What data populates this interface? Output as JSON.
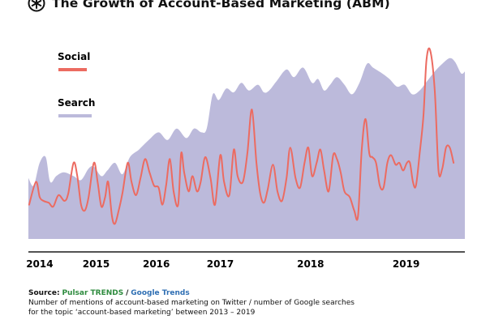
{
  "title": "The Growth of Account-Based Marketing (ABM)",
  "colors": {
    "search": "#bcbadb",
    "social": "#ec6b61",
    "axis": "#1a1a1a"
  },
  "footer": {
    "source_label": "Source:",
    "source_1": "Pulsar TRENDS",
    "separator": "/",
    "source_2": "Google Trends",
    "line_1": "Number of mentions of account-based marketing on Twitter / number of Google searches",
    "line_2": "for the topic ‘account-based marketing’ between 2013 – 2019"
  },
  "chart_data": {
    "type": "area",
    "title": "The Growth of Account-Based Marketing (ABM)",
    "xlabel": "",
    "ylabel": "",
    "xlim": [
      2013.85,
      2019.65
    ],
    "ylim": [
      0,
      100
    ],
    "grid": false,
    "legend_position": "top-left",
    "x_ticks": [
      {
        "value": 2014.0,
        "label": "2014"
      },
      {
        "value": 2014.75,
        "label": "2015"
      },
      {
        "value": 2015.55,
        "label": "2016"
      },
      {
        "value": 2016.4,
        "label": "2017"
      },
      {
        "value": 2017.6,
        "label": "2018"
      },
      {
        "value": 2018.87,
        "label": "2019"
      }
    ],
    "series": [
      {
        "name": "Search",
        "type": "area",
        "points": [
          [
            2013.85,
            32
          ],
          [
            2013.92,
            28
          ],
          [
            2014.0,
            40
          ],
          [
            2014.08,
            43
          ],
          [
            2014.14,
            30
          ],
          [
            2014.22,
            33
          ],
          [
            2014.32,
            35
          ],
          [
            2014.45,
            33
          ],
          [
            2014.55,
            31
          ],
          [
            2014.65,
            37
          ],
          [
            2014.72,
            38
          ],
          [
            2014.82,
            33
          ],
          [
            2014.9,
            36
          ],
          [
            2015.0,
            40
          ],
          [
            2015.1,
            34
          ],
          [
            2015.2,
            43
          ],
          [
            2015.32,
            47
          ],
          [
            2015.45,
            52
          ],
          [
            2015.58,
            56
          ],
          [
            2015.7,
            52
          ],
          [
            2015.82,
            58
          ],
          [
            2015.95,
            53
          ],
          [
            2016.05,
            58
          ],
          [
            2016.15,
            56
          ],
          [
            2016.22,
            58
          ],
          [
            2016.3,
            76
          ],
          [
            2016.38,
            73
          ],
          [
            2016.48,
            79
          ],
          [
            2016.58,
            77
          ],
          [
            2016.68,
            82
          ],
          [
            2016.78,
            78
          ],
          [
            2016.9,
            81
          ],
          [
            2016.98,
            77
          ],
          [
            2017.05,
            78
          ],
          [
            2017.15,
            83
          ],
          [
            2017.28,
            89
          ],
          [
            2017.38,
            85
          ],
          [
            2017.5,
            90
          ],
          [
            2017.62,
            82
          ],
          [
            2017.7,
            84
          ],
          [
            2017.78,
            78
          ],
          [
            2017.86,
            81
          ],
          [
            2017.95,
            85
          ],
          [
            2018.05,
            81
          ],
          [
            2018.15,
            76
          ],
          [
            2018.25,
            82
          ],
          [
            2018.35,
            92
          ],
          [
            2018.43,
            90
          ],
          [
            2018.55,
            87
          ],
          [
            2018.65,
            84
          ],
          [
            2018.75,
            80
          ],
          [
            2018.85,
            81
          ],
          [
            2018.95,
            76
          ],
          [
            2019.05,
            78
          ],
          [
            2019.15,
            83
          ],
          [
            2019.25,
            88
          ],
          [
            2019.35,
            92
          ],
          [
            2019.45,
            95
          ],
          [
            2019.52,
            93
          ],
          [
            2019.6,
            87
          ],
          [
            2019.65,
            88
          ]
        ]
      },
      {
        "name": "Social",
        "type": "line",
        "points": [
          [
            2013.86,
            18
          ],
          [
            2013.95,
            30
          ],
          [
            2014.0,
            22
          ],
          [
            2014.05,
            20
          ],
          [
            2014.12,
            19
          ],
          [
            2014.18,
            17
          ],
          [
            2014.25,
            23
          ],
          [
            2014.33,
            20
          ],
          [
            2014.38,
            24
          ],
          [
            2014.45,
            40
          ],
          [
            2014.5,
            33
          ],
          [
            2014.55,
            18
          ],
          [
            2014.6,
            15
          ],
          [
            2014.65,
            22
          ],
          [
            2014.72,
            40
          ],
          [
            2014.77,
            30
          ],
          [
            2014.82,
            17
          ],
          [
            2014.87,
            22
          ],
          [
            2014.91,
            30
          ],
          [
            2014.96,
            12
          ],
          [
            2015.0,
            8
          ],
          [
            2015.05,
            15
          ],
          [
            2015.1,
            24
          ],
          [
            2015.17,
            40
          ],
          [
            2015.22,
            30
          ],
          [
            2015.28,
            23
          ],
          [
            2015.34,
            32
          ],
          [
            2015.4,
            42
          ],
          [
            2015.46,
            35
          ],
          [
            2015.52,
            28
          ],
          [
            2015.58,
            27
          ],
          [
            2015.63,
            18
          ],
          [
            2015.68,
            28
          ],
          [
            2015.73,
            42
          ],
          [
            2015.78,
            25
          ],
          [
            2015.84,
            18
          ],
          [
            2015.88,
            45
          ],
          [
            2015.92,
            35
          ],
          [
            2015.98,
            25
          ],
          [
            2016.03,
            33
          ],
          [
            2016.09,
            25
          ],
          [
            2016.14,
            30
          ],
          [
            2016.2,
            43
          ],
          [
            2016.27,
            32
          ],
          [
            2016.33,
            18
          ],
          [
            2016.4,
            44
          ],
          [
            2016.45,
            30
          ],
          [
            2016.52,
            23
          ],
          [
            2016.58,
            47
          ],
          [
            2016.63,
            33
          ],
          [
            2016.7,
            30
          ],
          [
            2016.76,
            45
          ],
          [
            2016.82,
            68
          ],
          [
            2016.88,
            40
          ],
          [
            2016.93,
            24
          ],
          [
            2016.98,
            19
          ],
          [
            2017.03,
            26
          ],
          [
            2017.1,
            39
          ],
          [
            2017.16,
            25
          ],
          [
            2017.22,
            20
          ],
          [
            2017.28,
            32
          ],
          [
            2017.33,
            48
          ],
          [
            2017.4,
            32
          ],
          [
            2017.46,
            27
          ],
          [
            2017.52,
            40
          ],
          [
            2017.57,
            48
          ],
          [
            2017.62,
            33
          ],
          [
            2017.68,
            40
          ],
          [
            2017.73,
            47
          ],
          [
            2017.78,
            36
          ],
          [
            2017.84,
            25
          ],
          [
            2017.9,
            44
          ],
          [
            2017.95,
            42
          ],
          [
            2018.0,
            35
          ],
          [
            2018.05,
            25
          ],
          [
            2018.12,
            22
          ],
          [
            2018.18,
            15
          ],
          [
            2018.23,
            12
          ],
          [
            2018.28,
            47
          ],
          [
            2018.33,
            63
          ],
          [
            2018.38,
            45
          ],
          [
            2018.42,
            43
          ],
          [
            2018.47,
            40
          ],
          [
            2018.52,
            28
          ],
          [
            2018.57,
            27
          ],
          [
            2018.62,
            40
          ],
          [
            2018.67,
            44
          ],
          [
            2018.73,
            39
          ],
          [
            2018.78,
            40
          ],
          [
            2018.83,
            36
          ],
          [
            2018.88,
            40
          ],
          [
            2018.92,
            40
          ],
          [
            2018.96,
            30
          ],
          [
            2019.0,
            28
          ],
          [
            2019.05,
            45
          ],
          [
            2019.1,
            65
          ],
          [
            2019.14,
            94
          ],
          [
            2019.19,
            99
          ],
          [
            2019.25,
            78
          ],
          [
            2019.3,
            36
          ],
          [
            2019.35,
            37
          ],
          [
            2019.4,
            48
          ],
          [
            2019.45,
            48
          ],
          [
            2019.5,
            40
          ]
        ]
      }
    ]
  }
}
